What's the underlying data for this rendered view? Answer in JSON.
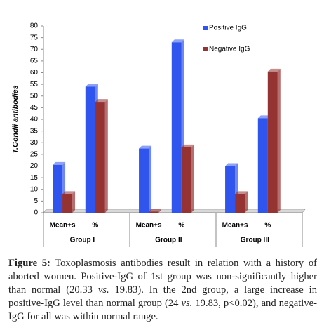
{
  "chart_data": {
    "type": "bar",
    "y_label": "T.Gondii antibodies",
    "categories": [
      "Mean+s",
      "%",
      "Mean+s",
      "%",
      "Mean+s",
      "%"
    ],
    "groups": [
      "Group I",
      "Group II",
      "Group III"
    ],
    "series": [
      {
        "name": "Positive IgG",
        "color": "#2f55ee",
        "values": [
          20.5,
          54,
          27.5,
          73,
          20,
          40.5
        ]
      },
      {
        "name": "Negative IgG",
        "color": "#953232",
        "values": [
          8,
          47.5,
          0.5,
          28,
          8,
          60.5
        ]
      }
    ],
    "ylim": [
      0,
      80
    ],
    "yticks": [
      0,
      5,
      10,
      15,
      20,
      25,
      30,
      35,
      40,
      45,
      50,
      55,
      60,
      65,
      70,
      75,
      80
    ]
  },
  "caption": {
    "label": "Figure 5:",
    "parts": [
      " Toxoplasmosis antibodies result in relation with a history of aborted women. Positive-IgG of 1st group was non-significantly higher than normal (20.33 ",
      "vs.",
      " 19.83). In the 2nd group, a large increase in positive-IgG level than normal group (24 ",
      "vs.",
      " 19.83, p<0.02), and negative-IgG for all was within normal range."
    ]
  }
}
